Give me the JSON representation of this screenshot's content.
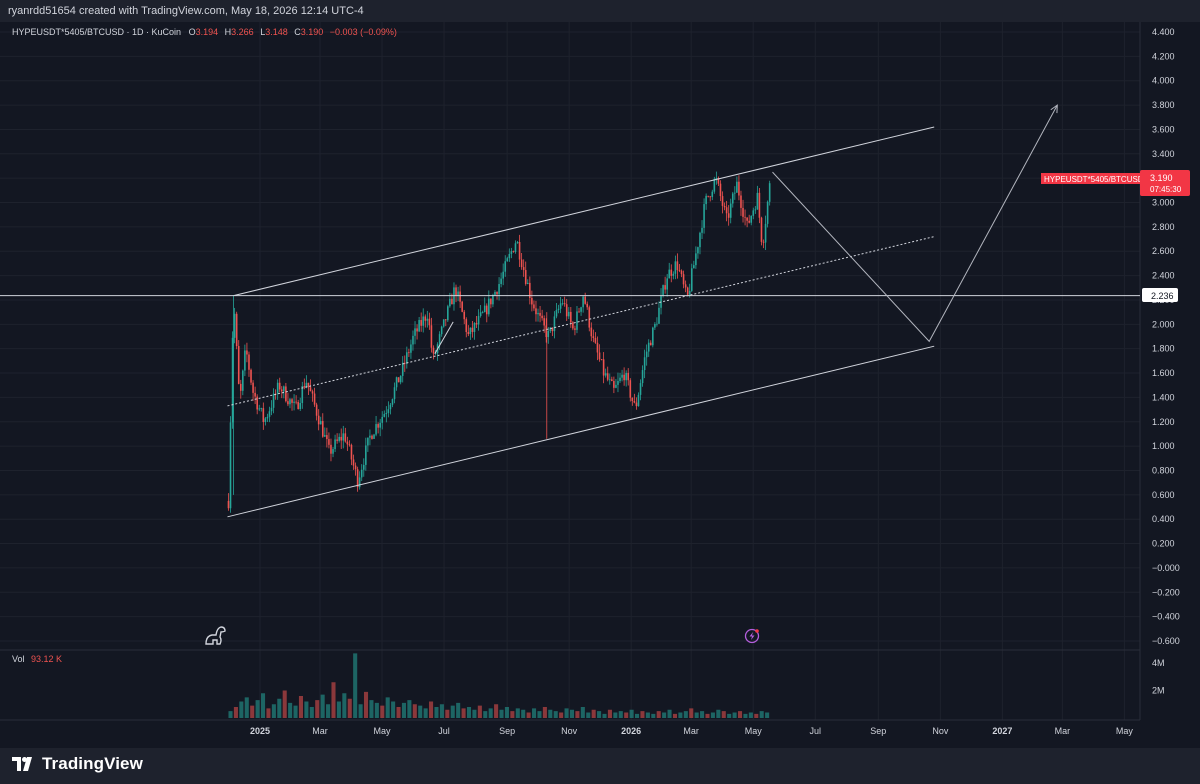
{
  "header": {
    "created_by": "ryanrdd51654 created with TradingView.com, May 18, 2026 12:14 UTC-4"
  },
  "legend": {
    "symbol": "HYPEUSDT*5405/BTCUSD · 1D · KuCoin",
    "o_label": "O",
    "o": "3.194",
    "h_label": "H",
    "h": "3.266",
    "l_label": "L",
    "l": "3.148",
    "c_label": "C",
    "c": "3.190",
    "change": "−0.003 (−0.09%)"
  },
  "price_tag": {
    "symbol": "HYPEUSDT*5405/BTCUSD",
    "price": "3.190",
    "countdown": "07:45:30"
  },
  "level_tag": {
    "price": "2.236"
  },
  "volume": {
    "label": "Vol",
    "value": "93.12 K",
    "axis_labels": [
      "4M",
      "2M"
    ]
  },
  "footer": {
    "brand": "TradingView"
  },
  "colors": {
    "up": "#26a69a",
    "down": "#ef5350",
    "background": "#131722",
    "text": "#d1d4dc",
    "line": "#d1d4dc",
    "tag": "#f23645"
  },
  "chart_data": {
    "type": "candlestick",
    "x_ticks": [
      "2025",
      "Mar",
      "May",
      "Jul",
      "Sep",
      "Nov",
      "2026",
      "Mar",
      "May",
      "Jul",
      "Sep",
      "Nov",
      "2027",
      "Mar",
      "May"
    ],
    "y_ticks": [
      "4.400",
      "4.200",
      "4.000",
      "3.800",
      "3.600",
      "3.400",
      "3.200",
      "3.000",
      "2.800",
      "2.600",
      "2.400",
      "2.200",
      "2.000",
      "1.800",
      "1.600",
      "1.400",
      "1.200",
      "1.000",
      "0.800",
      "0.600",
      "0.400",
      "0.200",
      "−0.000",
      "−0.200",
      "−0.400",
      "−0.600"
    ],
    "ylim": [
      -0.6,
      4.4
    ],
    "price_path": [
      [
        "2024-12-01",
        0.55
      ],
      [
        "2024-12-06",
        2.236
      ],
      [
        "2024-12-12",
        1.35
      ],
      [
        "2024-12-18",
        1.8
      ],
      [
        "2024-12-25",
        1.45
      ],
      [
        "2025-01-05",
        1.2
      ],
      [
        "2025-01-20",
        1.5
      ],
      [
        "2025-02-05",
        1.3
      ],
      [
        "2025-02-15",
        1.55
      ],
      [
        "2025-03-01",
        1.2
      ],
      [
        "2025-03-10",
        0.95
      ],
      [
        "2025-03-25",
        1.1
      ],
      [
        "2025-04-07",
        0.72
      ],
      [
        "2025-04-20",
        1.1
      ],
      [
        "2025-05-05",
        1.3
      ],
      [
        "2025-05-20",
        1.6
      ],
      [
        "2025-06-01",
        1.9
      ],
      [
        "2025-06-15",
        2.1
      ],
      [
        "2025-06-20",
        1.7
      ],
      [
        "2025-07-01",
        2.0
      ],
      [
        "2025-07-12",
        2.3
      ],
      [
        "2025-07-25",
        1.9
      ],
      [
        "2025-08-10",
        2.1
      ],
      [
        "2025-08-25",
        2.35
      ],
      [
        "2025-09-10",
        2.7
      ],
      [
        "2025-09-25",
        2.2
      ],
      [
        "2025-10-05",
        2.0
      ],
      [
        "2025-10-12",
        1.9
      ],
      [
        "2025-10-25",
        2.2
      ],
      [
        "2025-11-05",
        1.95
      ],
      [
        "2025-11-15",
        2.25
      ],
      [
        "2025-11-25",
        1.85
      ],
      [
        "2025-12-05",
        1.6
      ],
      [
        "2025-12-15",
        1.45
      ],
      [
        "2025-12-25",
        1.6
      ],
      [
        "2026-01-05",
        1.3
      ],
      [
        "2026-01-15",
        1.75
      ],
      [
        "2026-01-25",
        2.0
      ],
      [
        "2026-02-05",
        2.4
      ],
      [
        "2026-02-15",
        2.5
      ],
      [
        "2026-02-25",
        2.2
      ],
      [
        "2026-03-05",
        2.55
      ],
      [
        "2026-03-15",
        3.0
      ],
      [
        "2026-03-25",
        3.2
      ],
      [
        "2026-04-05",
        2.85
      ],
      [
        "2026-04-15",
        3.15
      ],
      [
        "2026-04-25",
        2.8
      ],
      [
        "2026-05-05",
        3.05
      ],
      [
        "2026-05-10",
        2.65
      ],
      [
        "2026-05-18",
        3.19
      ]
    ],
    "drawings": {
      "channel_upper": [
        [
          "2024-12-06",
          2.236
        ],
        [
          "2026-10-26",
          3.62
        ]
      ],
      "channel_lower": [
        [
          "2024-11-30",
          0.42
        ],
        [
          "2026-10-26",
          1.82
        ]
      ],
      "channel_mid": [
        [
          "2024-11-30",
          1.33
        ],
        [
          "2026-10-26",
          2.72
        ]
      ],
      "projection": [
        [
          "2026-05-20",
          3.25
        ],
        [
          "2026-10-21",
          1.86
        ],
        [
          "2027-02-24",
          3.8
        ]
      ],
      "horizontal_level": 2.236
    },
    "volume": {
      "ylim": [
        0,
        4800000
      ],
      "values": [
        500000,
        800000,
        1200000,
        1500000,
        900000,
        1300000,
        1800000,
        700000,
        1000000,
        1400000,
        2000000,
        1100000,
        900000,
        1600000,
        1200000,
        800000,
        1300000,
        1700000,
        1000000,
        2600000,
        1200000,
        1800000,
        1400000,
        4700000,
        1000000,
        1900000,
        1300000,
        1100000,
        900000,
        1500000,
        1200000,
        800000,
        1100000,
        1300000,
        1000000,
        900000,
        700000,
        1200000,
        800000,
        1000000,
        600000,
        900000,
        1100000,
        700000,
        800000,
        600000,
        900000,
        500000,
        700000,
        1000000,
        600000,
        800000,
        500000,
        700000,
        600000,
        400000,
        700000,
        500000,
        800000,
        600000,
        500000,
        400000,
        700000,
        600000,
        500000,
        800000,
        400000,
        600000,
        500000,
        300000,
        600000,
        400000,
        500000,
        400000,
        600000,
        300000,
        500000,
        400000,
        300000,
        500000,
        400000,
        600000,
        300000,
        400000,
        500000,
        700000,
        400000,
        500000,
        300000,
        400000,
        600000,
        500000,
        300000,
        400000,
        500000,
        300000,
        400000,
        300000,
        500000,
        400000
      ]
    }
  }
}
